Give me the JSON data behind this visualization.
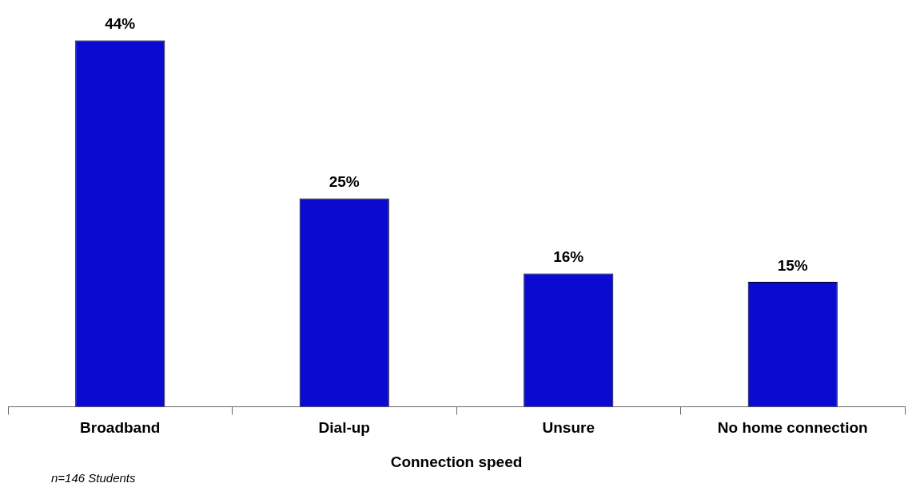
{
  "chart_data": {
    "type": "bar",
    "xlabel": "Connection speed",
    "categories": [
      "Broadband",
      "Dial-up",
      "Unsure",
      "No home connection"
    ],
    "values": [
      44,
      25,
      16,
      15
    ],
    "value_labels": [
      "44%",
      "25%",
      "16%",
      "15%"
    ],
    "color": "#0a0ad0",
    "grid": false,
    "legend": false,
    "tick_labels": "x",
    "annotations": [
      "n=146 Students"
    ]
  }
}
